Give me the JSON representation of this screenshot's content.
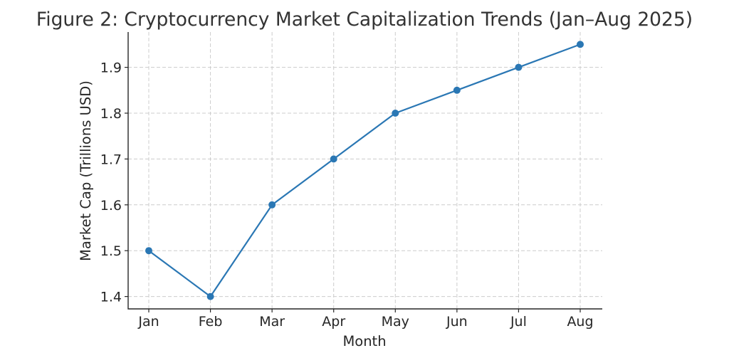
{
  "chart_data": {
    "type": "line",
    "title": "Figure 2: Cryptocurrency Market Capitalization Trends (Jan–Aug 2025)",
    "xlabel": "Month",
    "ylabel": "Market Cap (Trillions USD)",
    "categories": [
      "Jan",
      "Feb",
      "Mar",
      "Apr",
      "May",
      "Jun",
      "Jul",
      "Aug"
    ],
    "values": [
      1.5,
      1.4,
      1.6,
      1.7,
      1.8,
      1.85,
      1.9,
      1.95
    ],
    "yticks": [
      "1.4",
      "1.5",
      "1.6",
      "1.7",
      "1.8",
      "1.9"
    ],
    "ylim": [
      1.373,
      1.977
    ],
    "grid": true,
    "line_color": "#2a77b4"
  }
}
